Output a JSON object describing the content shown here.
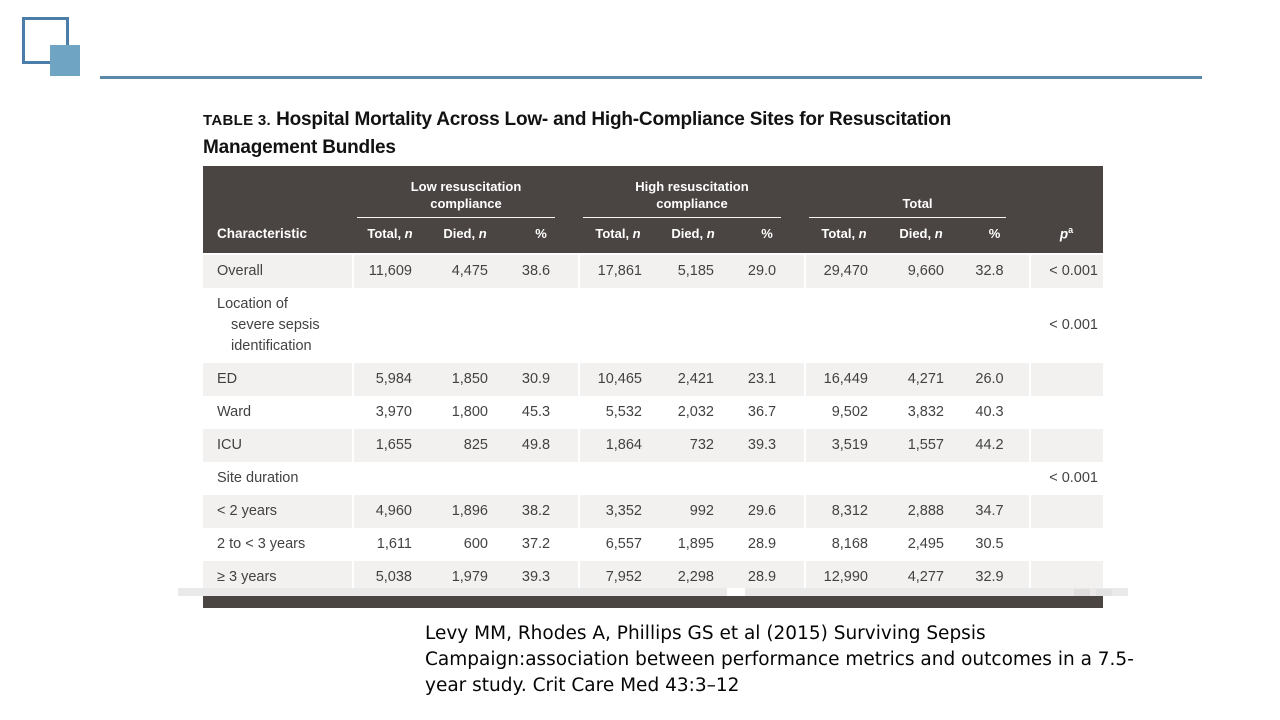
{
  "figure": {
    "table_label": "TABLE 3.",
    "title_line1": "Hospital Mortality Across Low- and High-Compliance Sites for Resuscitation",
    "title_line2": "Management Bundles"
  },
  "table": {
    "characteristic_label": "Characteristic",
    "groups": [
      {
        "label": "Low resuscitation compliance"
      },
      {
        "label": "High resuscitation compliance"
      },
      {
        "label": "Total"
      }
    ],
    "subheader": {
      "total_pre": "Total, ",
      "died_pre": "Died, ",
      "n": "n",
      "pct": "%"
    },
    "p_header": {
      "p": "p",
      "sup": "a"
    },
    "rows": [
      {
        "label_lines": [
          "Overall"
        ],
        "shaded": true,
        "cells": [
          "11,609",
          "4,475",
          "38.6",
          "17,861",
          "5,185",
          "29.0",
          "29,470",
          "9,660",
          "32.8",
          "< 0.001"
        ]
      },
      {
        "label_lines": [
          "Location of",
          "severe sepsis",
          "identification"
        ],
        "shaded": false,
        "cells": [
          "",
          "",
          "",
          "",
          "",
          "",
          "",
          "",
          "",
          "< 0.001"
        ]
      },
      {
        "label_lines": [
          "ED"
        ],
        "shaded": true,
        "cells": [
          "5,984",
          "1,850",
          "30.9",
          "10,465",
          "2,421",
          "23.1",
          "16,449",
          "4,271",
          "26.0",
          ""
        ]
      },
      {
        "label_lines": [
          "Ward"
        ],
        "shaded": false,
        "cells": [
          "3,970",
          "1,800",
          "45.3",
          "5,532",
          "2,032",
          "36.7",
          "9,502",
          "3,832",
          "40.3",
          ""
        ]
      },
      {
        "label_lines": [
          "ICU"
        ],
        "shaded": true,
        "cells": [
          "1,655",
          "825",
          "49.8",
          "1,864",
          "732",
          "39.3",
          "3,519",
          "1,557",
          "44.2",
          ""
        ]
      },
      {
        "label_lines": [
          "Site duration"
        ],
        "shaded": false,
        "cells": [
          "",
          "",
          "",
          "",
          "",
          "",
          "",
          "",
          "",
          "< 0.001"
        ]
      },
      {
        "label_lines": [
          "< 2 years"
        ],
        "shaded": true,
        "cells": [
          "4,960",
          "1,896",
          "38.2",
          "3,352",
          "992",
          "29.6",
          "8,312",
          "2,888",
          "34.7",
          ""
        ]
      },
      {
        "label_lines": [
          "2 to < 3 years"
        ],
        "shaded": false,
        "cells": [
          "1,611",
          "600",
          "37.2",
          "6,557",
          "1,895",
          "28.9",
          "8,168",
          "2,495",
          "30.5",
          ""
        ]
      },
      {
        "label_lines": [
          "≥ 3 years"
        ],
        "shaded": true,
        "cells": [
          "5,038",
          "1,979",
          "39.3",
          "7,952",
          "2,298",
          "28.9",
          "12,990",
          "4,277",
          "32.9",
          ""
        ]
      }
    ]
  },
  "citation": {
    "line1": "Levy MM, Rhodes A, Phillips GS et al (2015) Surviving Sepsis",
    "line2": "Campaign:association between performance metrics and outcomes in a 7.5-",
    "line3": "year study. Crit Care Med 43:3–12"
  },
  "colors": {
    "header_bar": "#4a4442",
    "row_shaded": "#f2f1ef",
    "logo_outline": "#4a7ea8",
    "logo_fill": "#6fa4c3",
    "divider_line": "#5d89a8"
  }
}
